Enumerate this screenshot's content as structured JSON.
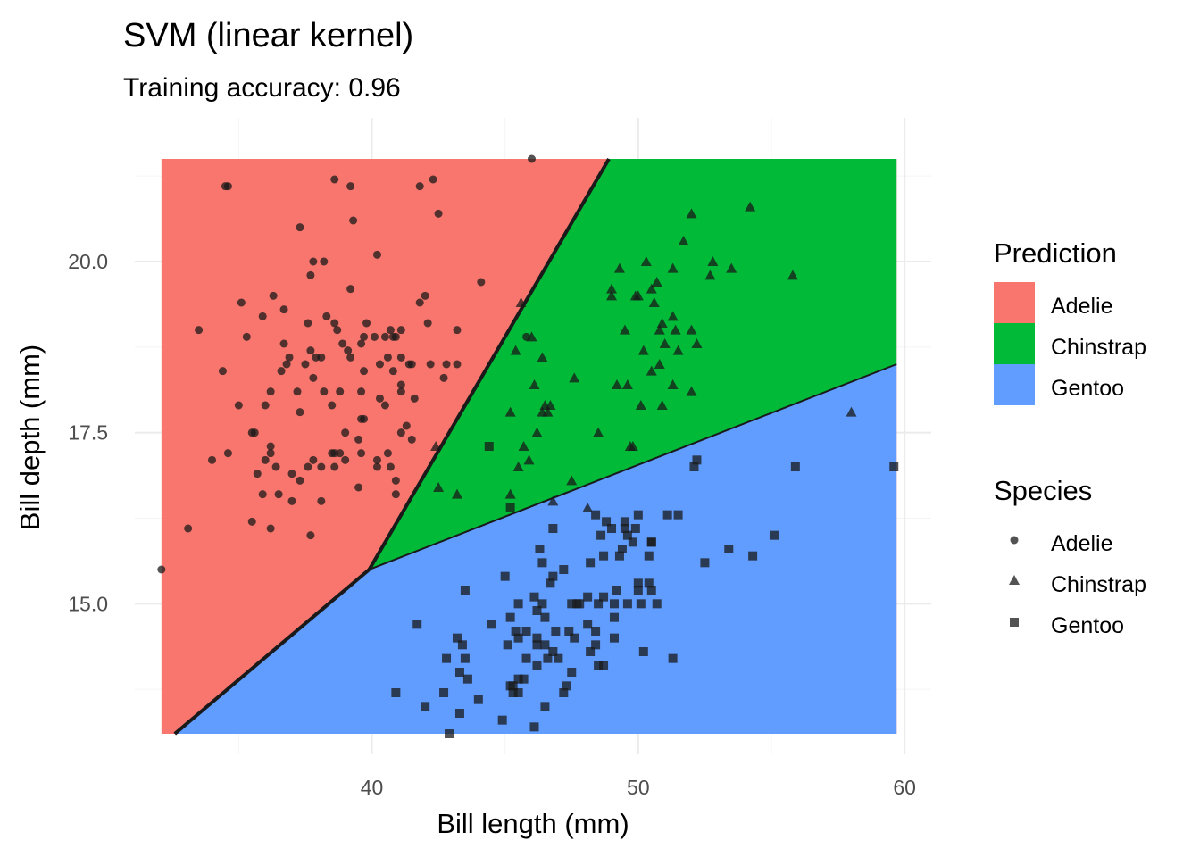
{
  "chart_data": {
    "type": "scatter",
    "title": "SVM (linear kernel)",
    "subtitle": "Training accuracy: 0.96",
    "xlabel": "Bill length (mm)",
    "ylabel": "Bill depth (mm)",
    "xlim": [
      31.1,
      61.0
    ],
    "ylim": [
      12.8,
      22.1
    ],
    "x_ticks": [
      40,
      50,
      60
    ],
    "x_tick_labels": [
      "40",
      "50",
      "60"
    ],
    "y_ticks": [
      15.0,
      17.5,
      20.0
    ],
    "y_tick_labels": [
      "15.0",
      "17.5",
      "20.0"
    ],
    "grid": true,
    "regions": {
      "x_range": [
        32.1,
        59.7
      ],
      "y_range": [
        13.1,
        21.5
      ],
      "boundaries": {
        "adelie_chinstrap": [
          [
            39.9,
            15.5
          ],
          [
            48.9,
            21.5
          ]
        ],
        "chinstrap_gentoo": [
          [
            39.9,
            15.5
          ],
          [
            59.7,
            18.5
          ]
        ],
        "adelie_gentoo": [
          [
            32.6,
            13.1
          ],
          [
            39.9,
            15.5
          ]
        ]
      },
      "colors": {
        "Adelie": "#F8766D",
        "Chinstrap": "#00BA38",
        "Gentoo": "#619CFF"
      }
    },
    "legend": {
      "placement": "right",
      "prediction": {
        "title": "Prediction",
        "items": [
          {
            "label": "Adelie",
            "color": "#F8766D"
          },
          {
            "label": "Chinstrap",
            "color": "#00BA38"
          },
          {
            "label": "Gentoo",
            "color": "#619CFF"
          }
        ]
      },
      "species": {
        "title": "Species",
        "items": [
          {
            "label": "Adelie",
            "shape": "circle"
          },
          {
            "label": "Chinstrap",
            "shape": "triangle"
          },
          {
            "label": "Gentoo",
            "shape": "square"
          }
        ]
      }
    },
    "point_color": "#1a1a1a",
    "series": [
      {
        "name": "Adelie",
        "shape": "circle",
        "points": [
          [
            32.1,
            15.5
          ],
          [
            33.1,
            16.1
          ],
          [
            33.5,
            19.0
          ],
          [
            34.0,
            17.1
          ],
          [
            34.4,
            18.4
          ],
          [
            34.5,
            21.1
          ],
          [
            34.6,
            17.2
          ],
          [
            34.6,
            21.1
          ],
          [
            35.0,
            17.9
          ],
          [
            35.1,
            19.4
          ],
          [
            35.3,
            18.9
          ],
          [
            35.5,
            16.2
          ],
          [
            35.5,
            17.5
          ],
          [
            35.6,
            17.5
          ],
          [
            35.7,
            16.9
          ],
          [
            35.9,
            16.6
          ],
          [
            35.9,
            19.2
          ],
          [
            36.0,
            17.1
          ],
          [
            36.0,
            17.9
          ],
          [
            36.2,
            16.1
          ],
          [
            36.2,
            17.2
          ],
          [
            36.2,
            17.3
          ],
          [
            36.2,
            18.1
          ],
          [
            36.3,
            19.5
          ],
          [
            36.4,
            17.0
          ],
          [
            36.5,
            16.6
          ],
          [
            36.6,
            18.4
          ],
          [
            36.7,
            18.8
          ],
          [
            36.7,
            19.3
          ],
          [
            36.8,
            18.5
          ],
          [
            36.9,
            18.6
          ],
          [
            37.0,
            16.5
          ],
          [
            37.0,
            16.9
          ],
          [
            37.2,
            18.1
          ],
          [
            37.3,
            16.8
          ],
          [
            37.3,
            17.8
          ],
          [
            37.3,
            20.5
          ],
          [
            37.5,
            18.5
          ],
          [
            37.6,
            17.0
          ],
          [
            37.6,
            19.1
          ],
          [
            37.7,
            16.0
          ],
          [
            37.7,
            18.7
          ],
          [
            37.7,
            19.8
          ],
          [
            37.8,
            17.1
          ],
          [
            37.8,
            18.3
          ],
          [
            37.8,
            20.0
          ],
          [
            37.9,
            18.6
          ],
          [
            38.1,
            16.5
          ],
          [
            38.1,
            17.0
          ],
          [
            38.1,
            18.6
          ],
          [
            38.2,
            18.1
          ],
          [
            38.2,
            20.0
          ],
          [
            38.3,
            19.2
          ],
          [
            38.5,
            17.2
          ],
          [
            38.5,
            17.9
          ],
          [
            38.6,
            17.0
          ],
          [
            38.6,
            17.2
          ],
          [
            38.6,
            19.1
          ],
          [
            38.6,
            21.2
          ],
          [
            38.7,
            19.0
          ],
          [
            38.8,
            17.2
          ],
          [
            38.8,
            18.1
          ],
          [
            38.9,
            18.8
          ],
          [
            39.0,
            17.1
          ],
          [
            39.0,
            17.5
          ],
          [
            39.1,
            18.7
          ],
          [
            39.2,
            18.6
          ],
          [
            39.2,
            19.6
          ],
          [
            39.2,
            21.1
          ],
          [
            39.3,
            20.6
          ],
          [
            39.5,
            16.7
          ],
          [
            39.5,
            17.4
          ],
          [
            39.6,
            17.2
          ],
          [
            39.6,
            17.7
          ],
          [
            39.6,
            18.1
          ],
          [
            39.6,
            18.8
          ],
          [
            39.7,
            17.7
          ],
          [
            39.7,
            18.4
          ],
          [
            39.7,
            18.9
          ],
          [
            39.8,
            19.1
          ],
          [
            40.1,
            18.9
          ],
          [
            40.2,
            17.0
          ],
          [
            40.2,
            17.1
          ],
          [
            40.2,
            20.1
          ],
          [
            40.3,
            18.0
          ],
          [
            40.3,
            18.5
          ],
          [
            40.5,
            17.9
          ],
          [
            40.5,
            18.9
          ],
          [
            40.6,
            17.2
          ],
          [
            40.6,
            18.6
          ],
          [
            40.7,
            17.0
          ],
          [
            40.7,
            19.0
          ],
          [
            40.8,
            18.4
          ],
          [
            40.8,
            18.9
          ],
          [
            40.9,
            16.6
          ],
          [
            40.9,
            16.8
          ],
          [
            40.9,
            18.9
          ],
          [
            41.1,
            17.5
          ],
          [
            41.1,
            18.1
          ],
          [
            41.1,
            18.2
          ],
          [
            41.1,
            18.6
          ],
          [
            41.1,
            19.0
          ],
          [
            41.3,
            17.6
          ],
          [
            41.4,
            18.5
          ],
          [
            41.5,
            17.4
          ],
          [
            41.5,
            18.5
          ],
          [
            41.6,
            18.0
          ],
          [
            41.8,
            19.4
          ],
          [
            41.8,
            21.1
          ],
          [
            42.0,
            19.5
          ],
          [
            42.1,
            19.1
          ],
          [
            42.2,
            18.5
          ],
          [
            42.3,
            21.2
          ],
          [
            42.5,
            20.7
          ],
          [
            42.7,
            18.3
          ],
          [
            42.8,
            18.5
          ],
          [
            43.2,
            18.5
          ],
          [
            43.2,
            19.0
          ],
          [
            44.1,
            19.7
          ],
          [
            45.8,
            18.9
          ],
          [
            46.0,
            21.5
          ]
        ]
      },
      {
        "name": "Chinstrap",
        "shape": "triangle",
        "points": [
          [
            42.4,
            17.3
          ],
          [
            42.5,
            16.7
          ],
          [
            43.2,
            16.6
          ],
          [
            45.2,
            16.6
          ],
          [
            45.2,
            17.8
          ],
          [
            45.4,
            18.7
          ],
          [
            45.5,
            17.0
          ],
          [
            45.6,
            19.4
          ],
          [
            45.7,
            17.3
          ],
          [
            45.9,
            17.1
          ],
          [
            46.0,
            18.9
          ],
          [
            46.1,
            18.2
          ],
          [
            46.2,
            17.5
          ],
          [
            46.4,
            17.8
          ],
          [
            46.4,
            18.6
          ],
          [
            46.5,
            17.9
          ],
          [
            46.6,
            17.8
          ],
          [
            46.7,
            17.9
          ],
          [
            46.8,
            16.5
          ],
          [
            47.5,
            16.8
          ],
          [
            47.6,
            18.3
          ],
          [
            48.1,
            16.4
          ],
          [
            48.5,
            17.5
          ],
          [
            49.0,
            19.5
          ],
          [
            49.0,
            19.6
          ],
          [
            49.2,
            18.2
          ],
          [
            49.3,
            19.9
          ],
          [
            49.5,
            19.0
          ],
          [
            49.6,
            18.2
          ],
          [
            49.7,
            17.3
          ],
          [
            49.8,
            17.3
          ],
          [
            49.9,
            19.5
          ],
          [
            50.0,
            19.5
          ],
          [
            50.1,
            17.9
          ],
          [
            50.2,
            18.7
          ],
          [
            50.3,
            20.0
          ],
          [
            50.5,
            18.4
          ],
          [
            50.5,
            19.6
          ],
          [
            50.6,
            19.4
          ],
          [
            50.7,
            19.7
          ],
          [
            50.8,
            18.5
          ],
          [
            50.8,
            19.0
          ],
          [
            50.9,
            17.9
          ],
          [
            50.9,
            19.1
          ],
          [
            51.0,
            18.8
          ],
          [
            51.3,
            18.2
          ],
          [
            51.3,
            19.2
          ],
          [
            51.3,
            19.9
          ],
          [
            51.4,
            19.0
          ],
          [
            51.5,
            18.7
          ],
          [
            51.7,
            20.3
          ],
          [
            52.0,
            18.1
          ],
          [
            52.0,
            19.0
          ],
          [
            52.0,
            20.7
          ],
          [
            52.2,
            18.8
          ],
          [
            52.7,
            19.8
          ],
          [
            52.8,
            20.0
          ],
          [
            53.5,
            19.9
          ],
          [
            54.2,
            20.8
          ],
          [
            55.8,
            19.8
          ],
          [
            58.0,
            17.8
          ]
        ]
      },
      {
        "name": "Gentoo",
        "shape": "square",
        "points": [
          [
            40.9,
            13.7
          ],
          [
            41.7,
            14.7
          ],
          [
            42.0,
            13.5
          ],
          [
            42.7,
            13.7
          ],
          [
            42.8,
            14.2
          ],
          [
            42.9,
            13.1
          ],
          [
            43.2,
            14.5
          ],
          [
            43.3,
            13.4
          ],
          [
            43.3,
            14.0
          ],
          [
            43.4,
            14.4
          ],
          [
            43.5,
            14.2
          ],
          [
            43.5,
            15.2
          ],
          [
            43.6,
            13.9
          ],
          [
            44.0,
            13.6
          ],
          [
            44.4,
            17.3
          ],
          [
            44.5,
            14.7
          ],
          [
            44.9,
            13.3
          ],
          [
            45.0,
            15.4
          ],
          [
            45.1,
            14.4
          ],
          [
            45.2,
            13.8
          ],
          [
            45.2,
            14.8
          ],
          [
            45.2,
            16.4
          ],
          [
            45.3,
            13.7
          ],
          [
            45.3,
            13.8
          ],
          [
            45.4,
            14.6
          ],
          [
            45.5,
            13.7
          ],
          [
            45.5,
            13.9
          ],
          [
            45.5,
            14.5
          ],
          [
            45.5,
            15.0
          ],
          [
            45.7,
            13.9
          ],
          [
            45.8,
            14.2
          ],
          [
            45.8,
            14.6
          ],
          [
            46.1,
            13.2
          ],
          [
            46.1,
            15.1
          ],
          [
            46.2,
            14.1
          ],
          [
            46.2,
            14.4
          ],
          [
            46.2,
            14.5
          ],
          [
            46.2,
            14.9
          ],
          [
            46.3,
            15.8
          ],
          [
            46.4,
            15.0
          ],
          [
            46.4,
            15.6
          ],
          [
            46.5,
            13.5
          ],
          [
            46.5,
            14.4
          ],
          [
            46.5,
            14.8
          ],
          [
            46.6,
            14.2
          ],
          [
            46.7,
            15.3
          ],
          [
            46.8,
            14.3
          ],
          [
            46.8,
            15.4
          ],
          [
            46.8,
            16.1
          ],
          [
            46.9,
            14.6
          ],
          [
            47.0,
            14.2
          ],
          [
            47.2,
            13.7
          ],
          [
            47.2,
            15.5
          ],
          [
            47.3,
            13.8
          ],
          [
            47.4,
            14.6
          ],
          [
            47.5,
            14.0
          ],
          [
            47.5,
            15.0
          ],
          [
            47.6,
            14.5
          ],
          [
            47.7,
            15.0
          ],
          [
            47.8,
            15.0
          ],
          [
            48.1,
            14.7
          ],
          [
            48.1,
            15.1
          ],
          [
            48.2,
            14.3
          ],
          [
            48.2,
            15.6
          ],
          [
            48.4,
            14.4
          ],
          [
            48.4,
            14.6
          ],
          [
            48.4,
            16.3
          ],
          [
            48.5,
            14.1
          ],
          [
            48.5,
            15.0
          ],
          [
            48.6,
            16.0
          ],
          [
            48.7,
            14.1
          ],
          [
            48.7,
            15.1
          ],
          [
            48.7,
            15.7
          ],
          [
            48.8,
            16.2
          ],
          [
            49.0,
            16.1
          ],
          [
            49.1,
            14.5
          ],
          [
            49.1,
            14.8
          ],
          [
            49.1,
            15.0
          ],
          [
            49.2,
            15.2
          ],
          [
            49.3,
            15.7
          ],
          [
            49.4,
            15.8
          ],
          [
            49.5,
            16.1
          ],
          [
            49.5,
            16.2
          ],
          [
            49.6,
            15.0
          ],
          [
            49.6,
            16.0
          ],
          [
            49.8,
            15.9
          ],
          [
            49.9,
            16.1
          ],
          [
            50.0,
            15.2
          ],
          [
            50.0,
            15.3
          ],
          [
            50.0,
            16.3
          ],
          [
            50.1,
            15.0
          ],
          [
            50.2,
            14.3
          ],
          [
            50.4,
            15.3
          ],
          [
            50.4,
            15.7
          ],
          [
            50.5,
            15.2
          ],
          [
            50.5,
            15.9
          ],
          [
            50.5,
            15.9
          ],
          [
            50.7,
            15.0
          ],
          [
            51.1,
            16.3
          ],
          [
            51.3,
            14.2
          ],
          [
            51.5,
            16.3
          ],
          [
            52.1,
            17.0
          ],
          [
            52.2,
            17.1
          ],
          [
            52.5,
            15.6
          ],
          [
            53.4,
            15.8
          ],
          [
            54.3,
            15.7
          ],
          [
            55.1,
            16.0
          ],
          [
            55.9,
            17.0
          ],
          [
            59.6,
            17.0
          ]
        ]
      }
    ]
  }
}
